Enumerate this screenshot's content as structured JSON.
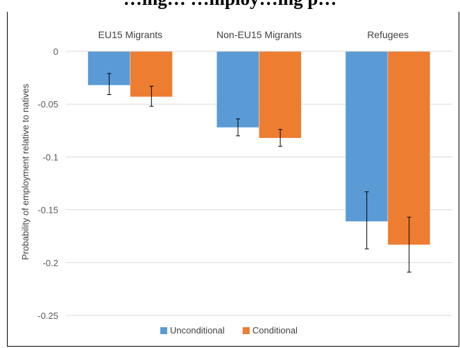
{
  "title": "…ing… …mploy…ing p…",
  "chart_data": {
    "type": "bar",
    "categories": [
      "EU15 Migrants",
      "Non-EU15 Migrants",
      "Refugees"
    ],
    "series": [
      {
        "name": "Unconditional",
        "color": "#5b9bd5",
        "values": [
          -0.032,
          -0.072,
          -0.161
        ],
        "err_low": [
          -0.041,
          -0.08,
          -0.187
        ],
        "err_high": [
          -0.021,
          -0.064,
          -0.133
        ]
      },
      {
        "name": "Conditional",
        "color": "#ed7d31",
        "values": [
          -0.043,
          -0.082,
          -0.183
        ],
        "err_low": [
          -0.052,
          -0.09,
          -0.209
        ],
        "err_high": [
          -0.033,
          -0.074,
          -0.157
        ]
      }
    ],
    "ylabel": "Probability of employment relative to natives",
    "xlabel": "",
    "ylim": [
      -0.25,
      0
    ],
    "yticks": [
      0,
      -0.05,
      -0.1,
      -0.15,
      -0.2,
      -0.25
    ],
    "ytick_labels": [
      "0",
      "-0.05",
      "-0.1",
      "-0.15",
      "-0.2",
      "-0.25"
    ],
    "grid": true,
    "legend_position": "bottom-center",
    "category_label_position": "top"
  }
}
